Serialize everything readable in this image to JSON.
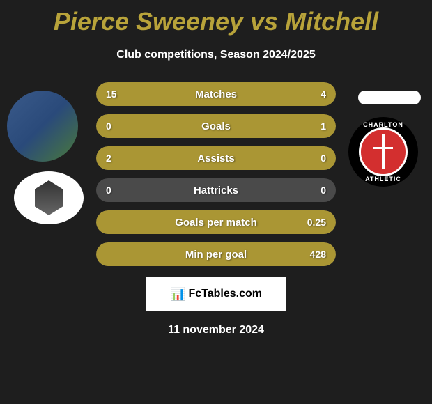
{
  "title": "Pierce Sweeney vs Mitchell",
  "subtitle": "Club competitions, Season 2024/2025",
  "colors": {
    "background": "#1e1e1e",
    "accent": "#b8a33a",
    "barFill": "#aa9634",
    "barEmpty": "#4a4a4a",
    "text": "#ffffff"
  },
  "clubRight": {
    "textTop": "CHARLTON",
    "textBottom": "ATHLETIC"
  },
  "stats": [
    {
      "label": "Matches",
      "leftValue": "15",
      "rightValue": "4",
      "leftFillPercent": 79,
      "rightFillPercent": 21
    },
    {
      "label": "Goals",
      "leftValue": "0",
      "rightValue": "1",
      "leftFillPercent": 0,
      "rightFillPercent": 100
    },
    {
      "label": "Assists",
      "leftValue": "2",
      "rightValue": "0",
      "leftFillPercent": 100,
      "rightFillPercent": 0
    },
    {
      "label": "Hattricks",
      "leftValue": "0",
      "rightValue": "0",
      "leftFillPercent": 0,
      "rightFillPercent": 0
    },
    {
      "label": "Goals per match",
      "leftValue": "",
      "rightValue": "0.25",
      "leftFillPercent": 0,
      "rightFillPercent": 100
    },
    {
      "label": "Min per goal",
      "leftValue": "",
      "rightValue": "428",
      "leftFillPercent": 0,
      "rightFillPercent": 100
    }
  ],
  "brand": {
    "icon": "📊",
    "text": "FcTables.com"
  },
  "date": "11 november 2024"
}
